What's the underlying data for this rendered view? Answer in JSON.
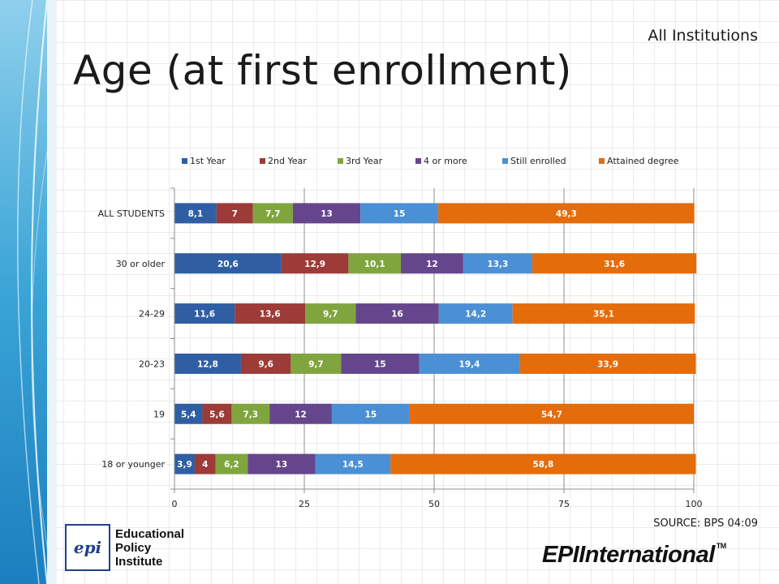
{
  "slide": {
    "title": "Age (at first enrollment)",
    "subtitle": "All Institutions",
    "source": "SOURCE: BPS 04:09"
  },
  "logos": {
    "left": {
      "name": "educational-policy-institute-logo",
      "mark": "epi",
      "lines": [
        "Educational",
        "Policy",
        "Institute"
      ]
    },
    "right": {
      "name": "epi-international-logo",
      "text": "EPIInternational",
      "tm": "TM"
    }
  },
  "chart_data": {
    "type": "bar",
    "orientation": "horizontal",
    "stacked": true,
    "title": "",
    "xlabel": "",
    "ylabel": "",
    "xlim": [
      0,
      100
    ],
    "x_ticks": [
      0,
      25,
      50,
      75,
      100
    ],
    "grid": true,
    "legend_position": "top",
    "categories": [
      "ALL STUDENTS",
      "30 or older",
      "24-29",
      "20-23",
      "19",
      "18 or younger"
    ],
    "series": [
      {
        "name": "1st Year",
        "color": "#2f5ea3",
        "values": [
          8.1,
          20.6,
          11.6,
          12.8,
          5.4,
          3.9
        ],
        "labels": [
          "8,1",
          "20,6",
          "11,6",
          "12,8",
          "5,4",
          "3,9"
        ]
      },
      {
        "name": "2nd Year",
        "color": "#9c3b37",
        "values": [
          7,
          12.9,
          13.6,
          9.6,
          5.6,
          4
        ],
        "labels": [
          "7",
          "12,9",
          "13,6",
          "9,6",
          "5,6",
          "4"
        ]
      },
      {
        "name": "3rd Year",
        "color": "#80a53f",
        "values": [
          7.7,
          10.1,
          9.7,
          9.7,
          7.3,
          6.2
        ],
        "labels": [
          "7,7",
          "10,1",
          "9,7",
          "9,7",
          "7,3",
          "6,2"
        ]
      },
      {
        "name": "4 or more",
        "color": "#65468c",
        "values": [
          13,
          12,
          16,
          15,
          12,
          13
        ],
        "labels": [
          "13",
          "12",
          "16",
          "15",
          "12",
          "13"
        ]
      },
      {
        "name": "Still enrolled",
        "color": "#4b90d4",
        "values": [
          15,
          13.3,
          14.2,
          19.4,
          15,
          14.5
        ],
        "labels": [
          "15",
          "13,3",
          "14,2",
          "19,4",
          "15",
          "14,5"
        ]
      },
      {
        "name": "Attained degree",
        "color": "#e46c0a",
        "values": [
          49.3,
          31.6,
          35.1,
          33.9,
          54.7,
          58.8
        ],
        "labels": [
          "49,3",
          "31,6",
          "35,1",
          "33,9",
          "54,7",
          "58,8"
        ]
      }
    ]
  }
}
